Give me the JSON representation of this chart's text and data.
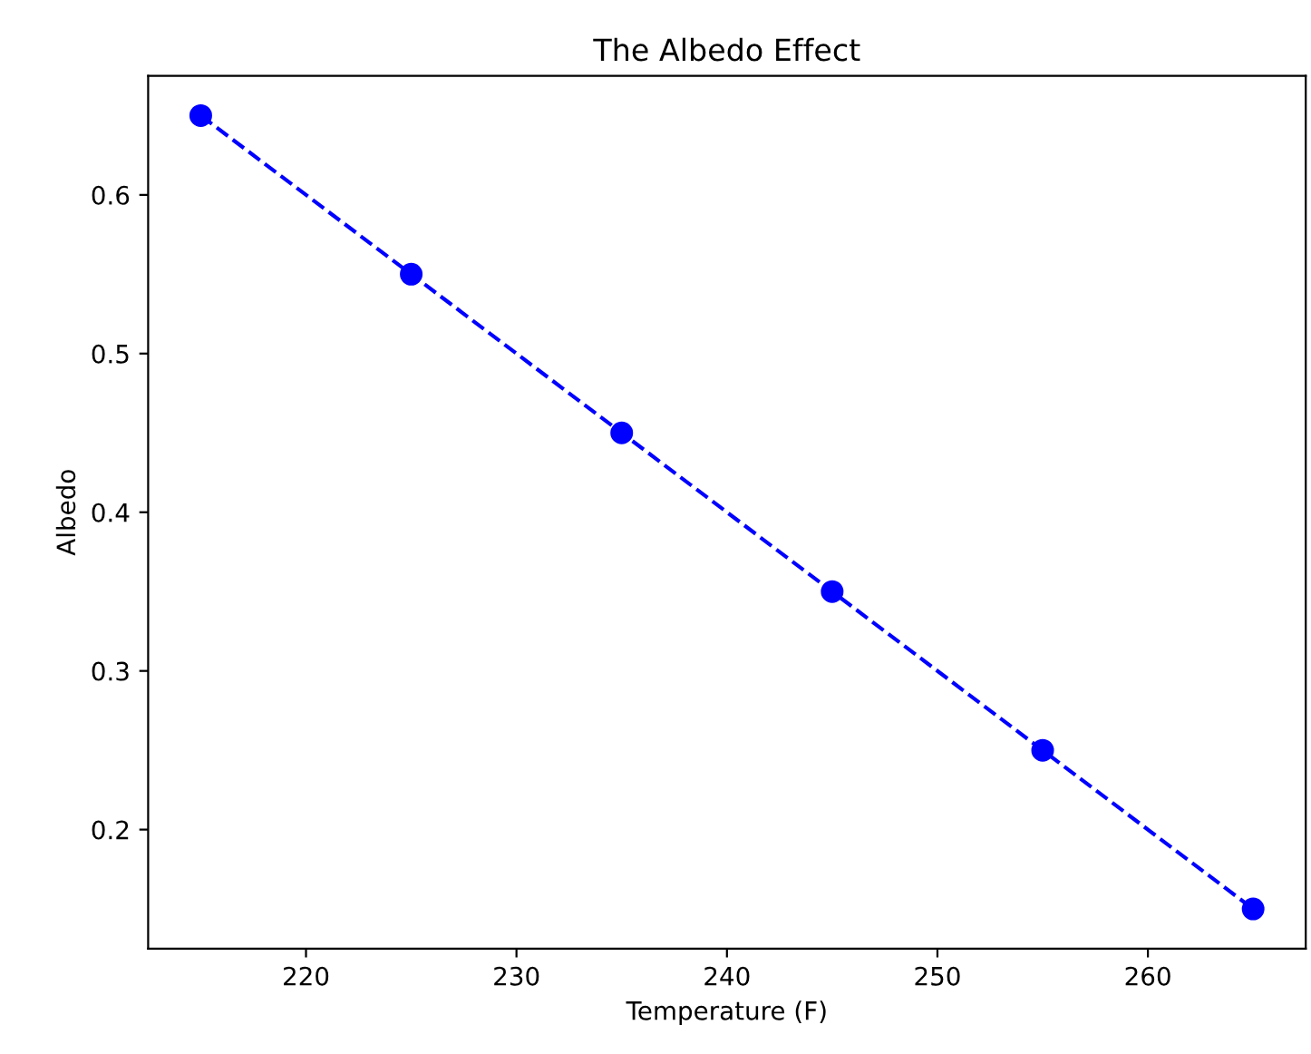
{
  "chart_data": {
    "type": "line",
    "title": "The Albedo Effect",
    "xlabel": "Temperature (F)",
    "ylabel": "Albedo",
    "x": [
      215,
      225,
      235,
      245,
      255,
      265
    ],
    "series": [
      {
        "color": "#0000ff",
        "values": [
          0.65,
          0.55,
          0.45,
          0.35,
          0.25,
          0.15
        ]
      }
    ],
    "marker": "circle",
    "line_style": "dashed",
    "grid": false,
    "legend": false,
    "xlim": [
      212.5,
      267.5
    ],
    "ylim": [
      0.125,
      0.675
    ],
    "xticks": [
      220,
      230,
      240,
      250,
      260
    ],
    "yticks": [
      0.2,
      0.3,
      0.4,
      0.5,
      0.6
    ]
  }
}
